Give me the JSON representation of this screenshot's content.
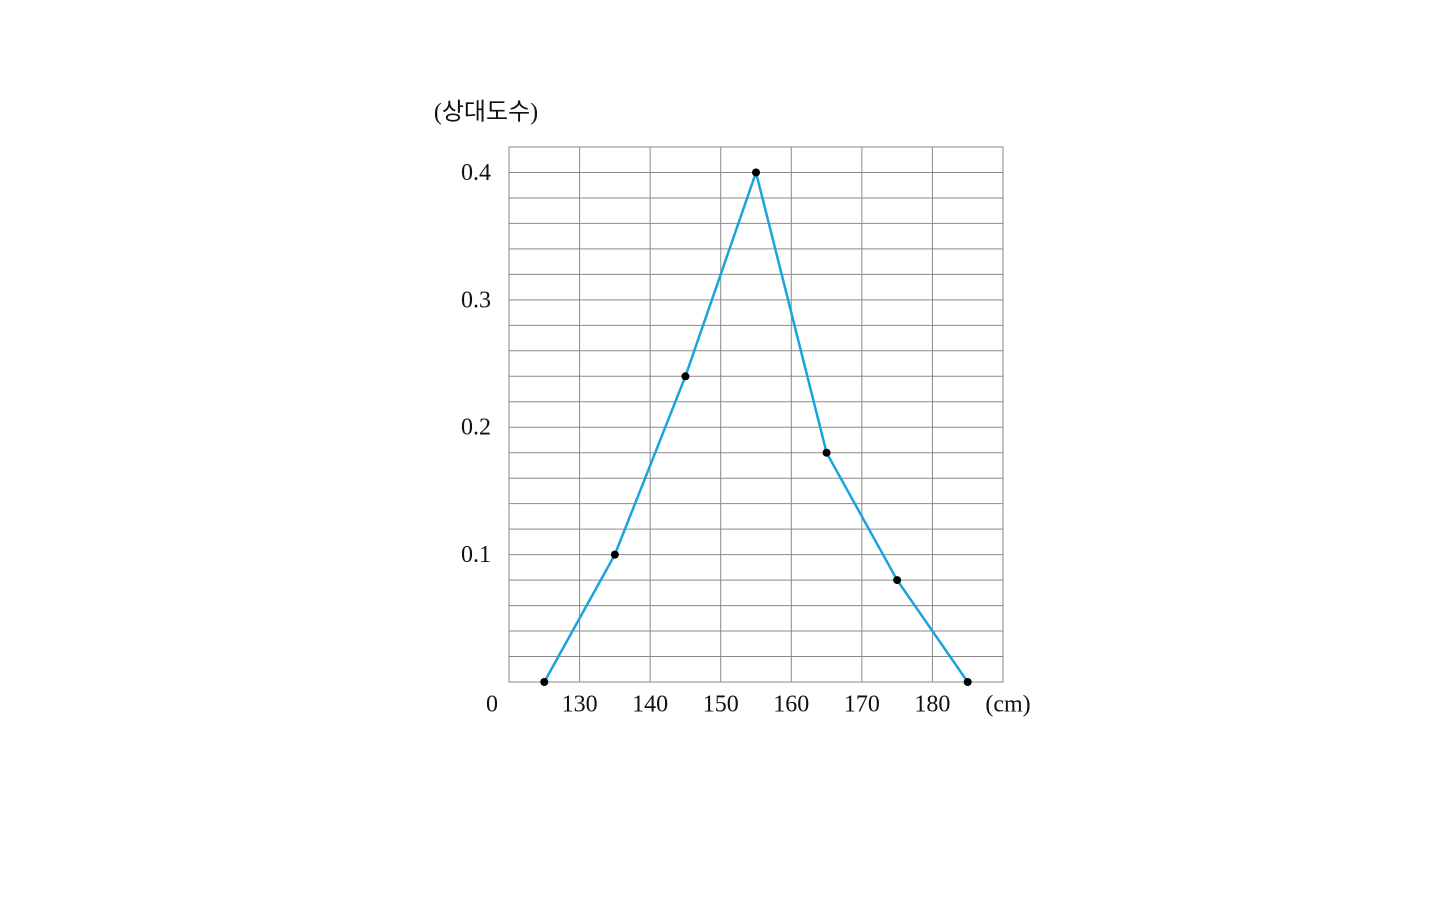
{
  "chart_data": {
    "type": "line",
    "y_label": "(상대도수)",
    "x_unit": "(cm)",
    "origin_label": "0",
    "x": [
      125,
      135,
      145,
      155,
      165,
      175,
      185
    ],
    "series": [
      {
        "color": "#1aa3dc",
        "values": [
          0,
          0.1,
          0.24,
          0.4,
          0.18,
          0.08,
          0
        ]
      }
    ],
    "xlim": [
      120,
      190
    ],
    "xticks": [
      130,
      140,
      150,
      160,
      170,
      180
    ],
    "ylim": [
      0,
      0.42
    ],
    "yticks": [
      0.1,
      0.2,
      0.3,
      0.4
    ],
    "y_minor_ticks": [
      0.02,
      0.04,
      0.06,
      0.08,
      0.12,
      0.14,
      0.16,
      0.18,
      0.22,
      0.24,
      0.26,
      0.28,
      0.32,
      0.34,
      0.36,
      0.38
    ],
    "grid": true,
    "marker_color": "#000000"
  }
}
